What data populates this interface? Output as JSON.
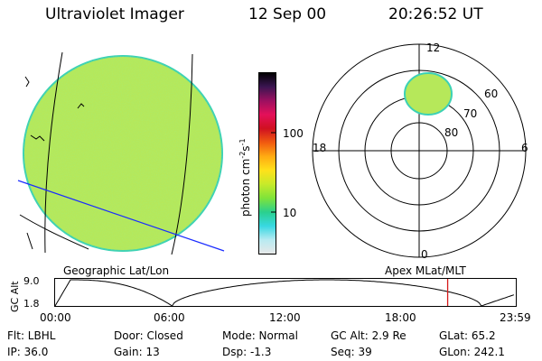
{
  "header": {
    "instrument": "Ultraviolet Imager",
    "date": "12 Sep 00",
    "time": "20:26:52 UT"
  },
  "colors": {
    "disk_fill": "#b6e85a",
    "disk_edge": "#3bd1b5",
    "cut_line": "#1a2cff",
    "cursor_line": "#d61a1a"
  },
  "colorbar": {
    "label_main": "photon cm",
    "label_exp1": "-2",
    "label_s": "s",
    "label_exp2": "-1",
    "tick_100": "100",
    "tick_10": "10",
    "stops": [
      "#e8e8e8",
      "#b9eaf1",
      "#38d8e2",
      "#2ad08e",
      "#7fe33a",
      "#c7ea2a",
      "#ffe11a",
      "#ffab12",
      "#f05a10",
      "#d01020",
      "#e4105a",
      "#9b1060",
      "#3a1550",
      "#000000"
    ]
  },
  "polar_plot": {
    "lat_labels": [
      "60",
      "70",
      "80"
    ],
    "mlt_labels": {
      "top": "12",
      "left": "18",
      "right": "6",
      "bottom": "0"
    }
  },
  "labels": {
    "geo": "Geographic Lat/Lon",
    "apex": "Apex MLat/MLT"
  },
  "altitude_plot": {
    "axis_label": "GC Alt",
    "y_ticks": [
      "9.0",
      "1.8"
    ],
    "x_ticks": [
      "00:00",
      "06:00",
      "12:00",
      "18:00",
      "23:59"
    ],
    "cursor_time_hours": 20.45
  },
  "status": {
    "flt": "Flt: LBHL",
    "ip": "IP: 36.0",
    "door": "Door: Closed",
    "gain": "Gain: 13",
    "mode": "Mode: Normal",
    "dsp": "Dsp:   -1.3",
    "gcalt": "GC Alt: 2.9 Re",
    "seq": "Seq: 39",
    "glat": "GLat:  65.2",
    "glon": "GLon: 242.1"
  }
}
